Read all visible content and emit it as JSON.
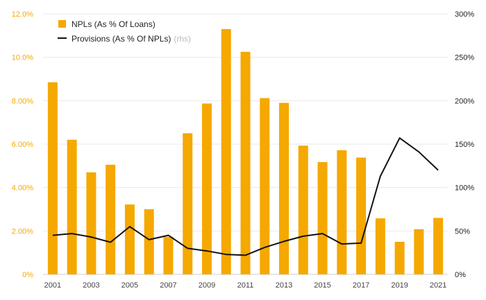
{
  "chart_data": {
    "type": "bar",
    "title": "",
    "xlabel": "",
    "ylabel": "",
    "x": [
      2001,
      2002,
      2003,
      2004,
      2005,
      2006,
      2007,
      2008,
      2009,
      2010,
      2011,
      2012,
      2013,
      2014,
      2015,
      2016,
      2017,
      2018,
      2019,
      2020,
      2021
    ],
    "x_tick_labels": [
      "2001",
      "2003",
      "2005",
      "2007",
      "2009",
      "2011",
      "2013",
      "2015",
      "2017",
      "2019",
      "2021"
    ],
    "y_left": {
      "ylim": [
        0,
        12
      ],
      "ticks": [
        0,
        2,
        4,
        6,
        8,
        10,
        12
      ],
      "tick_labels": [
        "0%",
        "2.00%",
        "4.00%",
        "6.00%",
        "8.00%",
        "10.0%",
        "12.0%"
      ]
    },
    "y_right": {
      "ylim": [
        0,
        300
      ],
      "ticks": [
        0,
        50,
        100,
        150,
        200,
        250,
        300
      ],
      "tick_labels": [
        "0%",
        "50%",
        "100%",
        "150%",
        "200%",
        "250%",
        "300%"
      ]
    },
    "series": [
      {
        "name": "NPLs (As % Of Loans)",
        "type": "bar",
        "axis": "left",
        "color": "#f5a800",
        "values": [
          8.85,
          6.2,
          4.7,
          5.05,
          3.22,
          3.0,
          1.73,
          6.5,
          7.87,
          11.3,
          10.25,
          8.12,
          7.9,
          5.93,
          5.17,
          5.72,
          5.38,
          2.58,
          1.5,
          2.08,
          2.6
        ]
      },
      {
        "name": "Provisions (As % Of NPLs)",
        "name_note": "(rhs)",
        "type": "line",
        "axis": "right",
        "color": "#111111",
        "values": [
          45,
          47,
          43,
          37,
          55,
          40,
          45,
          30,
          27,
          23,
          22,
          31,
          38,
          44,
          47,
          35,
          36,
          113,
          157,
          141,
          120
        ]
      }
    ],
    "legend": "top-left",
    "grid": true
  }
}
